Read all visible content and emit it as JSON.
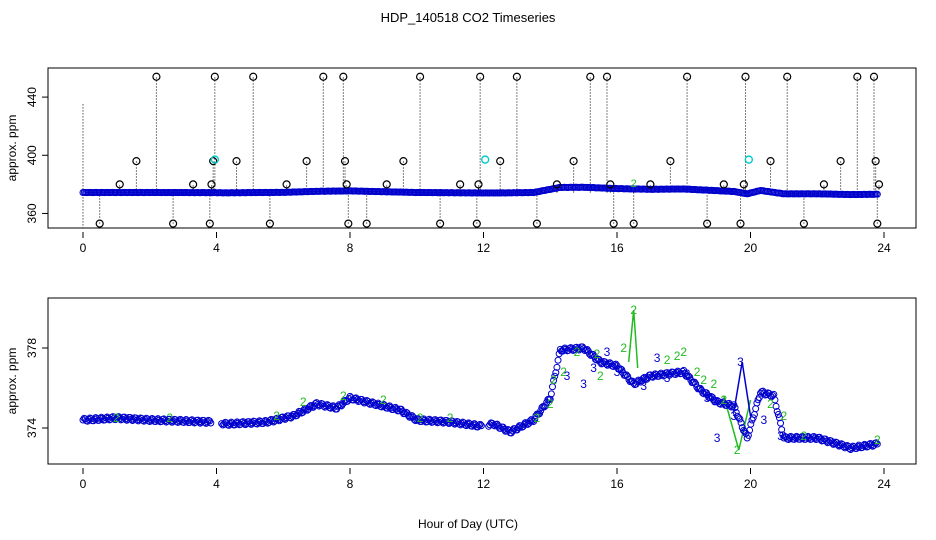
{
  "title": "HDP_140518  CO2 Timeseries",
  "xlabel": "Hour of Day (UTC)",
  "colors": {
    "circle_outlier": "#000000",
    "circle_main": "#0000cc",
    "highlight": "#00cccc",
    "label_2": "#22bb22",
    "label_3": "#0000cc"
  },
  "chart_data": [
    {
      "type": "scatter",
      "panel": "top",
      "ylabel": "approx. ppm",
      "xlim": [
        0,
        24
      ],
      "ylim": [
        350,
        460
      ],
      "xticks": [
        "0",
        "4",
        "8",
        "12",
        "16",
        "20",
        "24"
      ],
      "yticks": [
        "360",
        "400",
        "440"
      ],
      "baseline": [
        [
          0,
          374.4
        ],
        [
          2,
          374.4
        ],
        [
          3.9,
          374.3
        ],
        [
          4.3,
          374.2
        ],
        [
          6,
          374.5
        ],
        [
          7,
          375.2
        ],
        [
          8,
          375.5
        ],
        [
          10,
          374.4
        ],
        [
          11.9,
          374.1
        ],
        [
          12.5,
          374.1
        ],
        [
          13.5,
          374.4
        ],
        [
          14.3,
          377.9
        ],
        [
          15,
          378.0
        ],
        [
          16,
          377.1
        ],
        [
          17,
          376.6
        ],
        [
          18,
          376.8
        ],
        [
          19.5,
          375.1
        ],
        [
          19.9,
          373.5
        ],
        [
          20.3,
          375.8
        ],
        [
          21,
          373.5
        ],
        [
          22,
          373.5
        ],
        [
          23,
          373.0
        ],
        [
          23.8,
          373.2
        ]
      ],
      "outliers": [
        [
          0.5,
          353
        ],
        [
          1.1,
          380
        ],
        [
          1.6,
          396
        ],
        [
          2.2,
          454
        ],
        [
          2.7,
          353
        ],
        [
          3.3,
          380
        ],
        [
          3.8,
          353
        ],
        [
          3.85,
          380
        ],
        [
          3.9,
          396
        ],
        [
          3.95,
          454
        ],
        [
          4.6,
          396
        ],
        [
          5.1,
          454
        ],
        [
          5.6,
          353
        ],
        [
          6.1,
          380
        ],
        [
          6.7,
          396
        ],
        [
          7.2,
          454
        ],
        [
          7.8,
          454
        ],
        [
          7.85,
          396
        ],
        [
          7.9,
          380
        ],
        [
          7.95,
          353
        ],
        [
          8.5,
          353
        ],
        [
          9.1,
          380
        ],
        [
          9.6,
          396
        ],
        [
          10.1,
          454
        ],
        [
          10.7,
          353
        ],
        [
          11.3,
          380
        ],
        [
          11.8,
          353
        ],
        [
          11.85,
          380
        ],
        [
          11.9,
          454
        ],
        [
          12.5,
          396
        ],
        [
          13.0,
          454
        ],
        [
          13.6,
          353
        ],
        [
          14.2,
          380
        ],
        [
          14.7,
          396
        ],
        [
          15.2,
          454
        ],
        [
          15.7,
          454
        ],
        [
          15.8,
          380
        ],
        [
          15.9,
          353
        ],
        [
          16.5,
          353
        ],
        [
          17.0,
          380
        ],
        [
          17.6,
          396
        ],
        [
          18.1,
          454
        ],
        [
          18.7,
          353
        ],
        [
          19.2,
          380
        ],
        [
          19.7,
          353
        ],
        [
          19.8,
          380
        ],
        [
          19.85,
          454
        ],
        [
          20.6,
          396
        ],
        [
          21.1,
          454
        ],
        [
          21.6,
          353
        ],
        [
          22.2,
          380
        ],
        [
          22.7,
          396
        ],
        [
          23.2,
          454
        ],
        [
          23.7,
          454
        ],
        [
          23.75,
          396
        ],
        [
          23.8,
          353
        ],
        [
          23.85,
          380
        ]
      ],
      "highlights": [
        [
          3.95,
          397
        ],
        [
          12.05,
          397
        ],
        [
          19.95,
          397
        ]
      ],
      "green_marks": [
        [
          16.5,
          381
        ]
      ]
    },
    {
      "type": "scatter",
      "panel": "bottom",
      "ylabel": "approx. ppm",
      "xlim": [
        0,
        24
      ],
      "ylim": [
        372.2,
        380.5
      ],
      "xticks": [
        "0",
        "4",
        "8",
        "12",
        "16",
        "20",
        "24"
      ],
      "yticks": [
        "374",
        "378"
      ],
      "baseline": [
        [
          0,
          374.4
        ],
        [
          1,
          374.5
        ],
        [
          2,
          374.4
        ],
        [
          3.9,
          374.3
        ],
        [
          4.3,
          374.2
        ],
        [
          5.5,
          374.3
        ],
        [
          6.3,
          374.6
        ],
        [
          7,
          375.2
        ],
        [
          7.6,
          375.0
        ],
        [
          8,
          375.5
        ],
        [
          8.5,
          375.3
        ],
        [
          9.5,
          374.9
        ],
        [
          10,
          374.4
        ],
        [
          11,
          374.3
        ],
        [
          11.9,
          374.1
        ],
        [
          12.3,
          374.2
        ],
        [
          12.8,
          373.8
        ],
        [
          13.5,
          374.4
        ],
        [
          14,
          375.5
        ],
        [
          14.3,
          377.9
        ],
        [
          15,
          378.0
        ],
        [
          15.5,
          377.3
        ],
        [
          16,
          377.1
        ],
        [
          16.5,
          376.2
        ],
        [
          17,
          376.6
        ],
        [
          17.5,
          376.7
        ],
        [
          18,
          376.8
        ],
        [
          18.5,
          375.9
        ],
        [
          19,
          375.3
        ],
        [
          19.5,
          375.1
        ],
        [
          19.9,
          373.5
        ],
        [
          20.3,
          375.8
        ],
        [
          20.7,
          375.6
        ],
        [
          21,
          373.5
        ],
        [
          22,
          373.5
        ],
        [
          23,
          373.0
        ],
        [
          23.8,
          373.2
        ]
      ],
      "green_line": [
        [
          16.35,
          377.3
        ],
        [
          16.5,
          379.9
        ],
        [
          16.62,
          377.0
        ]
      ],
      "green_line2": [
        [
          19.2,
          375.6
        ],
        [
          19.65,
          372.9
        ],
        [
          20.0,
          375.4
        ]
      ],
      "blue_line": [
        [
          19.5,
          374.8
        ],
        [
          19.75,
          377.3
        ],
        [
          20.0,
          374.6
        ]
      ],
      "label2": [
        [
          1.0,
          374.5
        ],
        [
          2.6,
          374.5
        ],
        [
          5.8,
          374.6
        ],
        [
          6.6,
          375.3
        ],
        [
          7.8,
          375.6
        ],
        [
          9.0,
          375.4
        ],
        [
          10.1,
          374.5
        ],
        [
          11.0,
          374.5
        ],
        [
          13.6,
          374.5
        ],
        [
          14.0,
          375.2
        ],
        [
          14.1,
          376.4
        ],
        [
          14.4,
          376.8
        ],
        [
          14.8,
          377.8
        ],
        [
          15.4,
          377.7
        ],
        [
          15.5,
          376.6
        ],
        [
          16.2,
          378.0
        ],
        [
          16.5,
          379.9
        ],
        [
          17.5,
          377.4
        ],
        [
          17.8,
          377.6
        ],
        [
          18.0,
          377.8
        ],
        [
          18.4,
          376.8
        ],
        [
          18.6,
          376.4
        ],
        [
          18.9,
          376.2
        ],
        [
          19.2,
          375.4
        ],
        [
          19.6,
          372.9
        ],
        [
          20.6,
          375.2
        ],
        [
          21.0,
          374.6
        ],
        [
          21.6,
          373.6
        ],
        [
          23.8,
          373.4
        ]
      ],
      "label3": [
        [
          14.5,
          376.6
        ],
        [
          15.0,
          376.2
        ],
        [
          15.3,
          377.0
        ],
        [
          15.7,
          377.8
        ],
        [
          16.0,
          376.8
        ],
        [
          16.8,
          376.1
        ],
        [
          17.2,
          377.5
        ],
        [
          17.5,
          376.5
        ],
        [
          18.1,
          376.7
        ],
        [
          18.7,
          375.5
        ],
        [
          19.0,
          373.5
        ],
        [
          19.5,
          374.6
        ],
        [
          19.7,
          377.3
        ],
        [
          20.4,
          374.4
        ],
        [
          20.9,
          373.6
        ]
      ]
    }
  ]
}
